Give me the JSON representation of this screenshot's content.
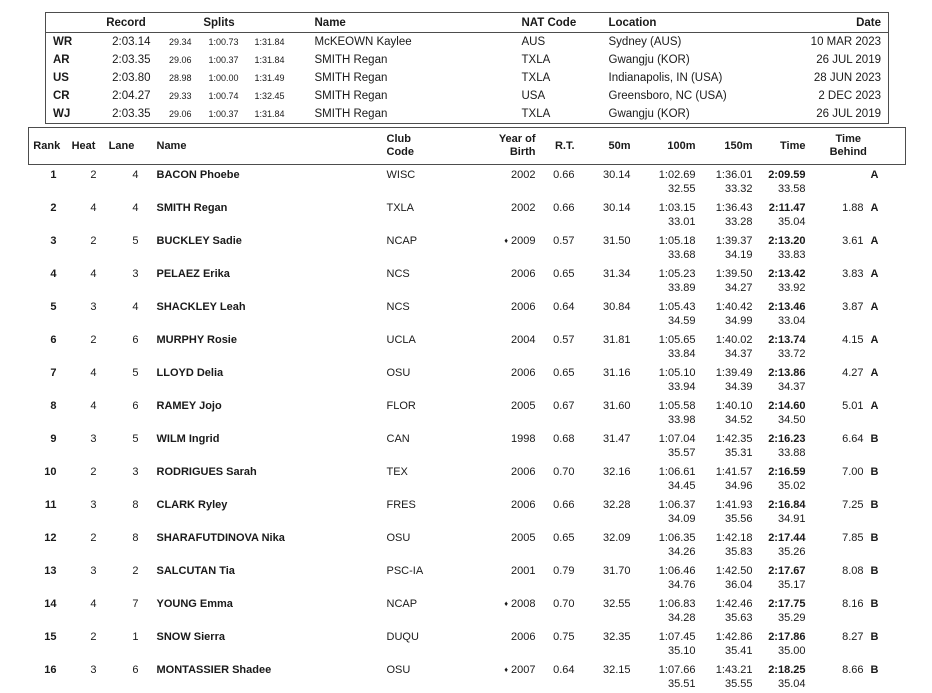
{
  "accent_colors": {
    "text": "#1a1a1a",
    "border": "#4d4d4d",
    "background": "#ffffff"
  },
  "records": {
    "headers": {
      "record": "Record",
      "splits": "Splits",
      "name": "Name",
      "nat": "NAT Code",
      "location": "Location",
      "date": "Date"
    },
    "rows": [
      {
        "tag": "WR",
        "time": "2:03.14",
        "s1": "29.34",
        "s2": "1:00.73",
        "s3": "1:31.84",
        "name": "McKEOWN Kaylee",
        "nat": "AUS",
        "location": "Sydney (AUS)",
        "date": "10 MAR 2023"
      },
      {
        "tag": "AR",
        "time": "2:03.35",
        "s1": "29.06",
        "s2": "1:00.37",
        "s3": "1:31.84",
        "name": "SMITH Regan",
        "nat": "TXLA",
        "location": "Gwangju (KOR)",
        "date": "26 JUL 2019"
      },
      {
        "tag": "US",
        "time": "2:03.80",
        "s1": "28.98",
        "s2": "1:00.00",
        "s3": "1:31.49",
        "name": "SMITH Regan",
        "nat": "TXLA",
        "location": "Indianapolis, IN (USA)",
        "date": "28 JUN 2023"
      },
      {
        "tag": "CR",
        "time": "2:04.27",
        "s1": "29.33",
        "s2": "1:00.74",
        "s3": "1:32.45",
        "name": "SMITH Regan",
        "nat": "USA",
        "location": "Greensboro, NC (USA)",
        "date": "2 DEC 2023"
      },
      {
        "tag": "WJ",
        "time": "2:03.35",
        "s1": "29.06",
        "s2": "1:00.37",
        "s3": "1:31.84",
        "name": "SMITH Regan",
        "nat": "TXLA",
        "location": "Gwangju (KOR)",
        "date": "26 JUL 2019"
      }
    ]
  },
  "results": {
    "headers": {
      "rank": "Rank",
      "heat": "Heat",
      "lane": "Lane",
      "name": "Name",
      "club": "Club\nCode",
      "yob": "Year of\nBirth",
      "rt": "R.T.",
      "m50": "50m",
      "m100": "100m",
      "m150": "150m",
      "time": "Time",
      "behind": "Time\nBehind"
    },
    "junior_marker": "♦",
    "rows": [
      {
        "rank": "1",
        "heat": "2",
        "lane": "4",
        "name": "BACON Phoebe",
        "club": "WISC",
        "diamond": false,
        "yob": "2002",
        "rt": "0.66",
        "m50": "30.14",
        "m100": "1:02.69",
        "m100s": "32.55",
        "m150": "1:36.01",
        "m150s": "33.32",
        "time": "2:09.59",
        "times": "33.58",
        "behind": "",
        "grade": "A"
      },
      {
        "rank": "2",
        "heat": "4",
        "lane": "4",
        "name": "SMITH Regan",
        "club": "TXLA",
        "diamond": false,
        "yob": "2002",
        "rt": "0.66",
        "m50": "30.14",
        "m100": "1:03.15",
        "m100s": "33.01",
        "m150": "1:36.43",
        "m150s": "33.28",
        "time": "2:11.47",
        "times": "35.04",
        "behind": "1.88",
        "grade": "A"
      },
      {
        "rank": "3",
        "heat": "2",
        "lane": "5",
        "name": "BUCKLEY Sadie",
        "club": "NCAP",
        "diamond": true,
        "yob": "2009",
        "rt": "0.57",
        "m50": "31.50",
        "m100": "1:05.18",
        "m100s": "33.68",
        "m150": "1:39.37",
        "m150s": "34.19",
        "time": "2:13.20",
        "times": "33.83",
        "behind": "3.61",
        "grade": "A"
      },
      {
        "rank": "4",
        "heat": "4",
        "lane": "3",
        "name": "PELAEZ Erika",
        "club": "NCS",
        "diamond": false,
        "yob": "2006",
        "rt": "0.65",
        "m50": "31.34",
        "m100": "1:05.23",
        "m100s": "33.89",
        "m150": "1:39.50",
        "m150s": "34.27",
        "time": "2:13.42",
        "times": "33.92",
        "behind": "3.83",
        "grade": "A"
      },
      {
        "rank": "5",
        "heat": "3",
        "lane": "4",
        "name": "SHACKLEY Leah",
        "club": "NCS",
        "diamond": false,
        "yob": "2006",
        "rt": "0.64",
        "m50": "30.84",
        "m100": "1:05.43",
        "m100s": "34.59",
        "m150": "1:40.42",
        "m150s": "34.99",
        "time": "2:13.46",
        "times": "33.04",
        "behind": "3.87",
        "grade": "A"
      },
      {
        "rank": "6",
        "heat": "2",
        "lane": "6",
        "name": "MURPHY Rosie",
        "club": "UCLA",
        "diamond": false,
        "yob": "2004",
        "rt": "0.57",
        "m50": "31.81",
        "m100": "1:05.65",
        "m100s": "33.84",
        "m150": "1:40.02",
        "m150s": "34.37",
        "time": "2:13.74",
        "times": "33.72",
        "behind": "4.15",
        "grade": "A"
      },
      {
        "rank": "7",
        "heat": "4",
        "lane": "5",
        "name": "LLOYD Delia",
        "club": "OSU",
        "diamond": false,
        "yob": "2006",
        "rt": "0.65",
        "m50": "31.16",
        "m100": "1:05.10",
        "m100s": "33.94",
        "m150": "1:39.49",
        "m150s": "34.39",
        "time": "2:13.86",
        "times": "34.37",
        "behind": "4.27",
        "grade": "A"
      },
      {
        "rank": "8",
        "heat": "4",
        "lane": "6",
        "name": "RAMEY Jojo",
        "club": "FLOR",
        "diamond": false,
        "yob": "2005",
        "rt": "0.67",
        "m50": "31.60",
        "m100": "1:05.58",
        "m100s": "33.98",
        "m150": "1:40.10",
        "m150s": "34.52",
        "time": "2:14.60",
        "times": "34.50",
        "behind": "5.01",
        "grade": "A"
      },
      {
        "rank": "9",
        "heat": "3",
        "lane": "5",
        "name": "WILM Ingrid",
        "club": "CAN",
        "diamond": false,
        "yob": "1998",
        "rt": "0.68",
        "m50": "31.47",
        "m100": "1:07.04",
        "m100s": "35.57",
        "m150": "1:42.35",
        "m150s": "35.31",
        "time": "2:16.23",
        "times": "33.88",
        "behind": "6.64",
        "grade": "B"
      },
      {
        "rank": "10",
        "heat": "2",
        "lane": "3",
        "name": "RODRIGUES Sarah",
        "club": "TEX",
        "diamond": false,
        "yob": "2006",
        "rt": "0.70",
        "m50": "32.16",
        "m100": "1:06.61",
        "m100s": "34.45",
        "m150": "1:41.57",
        "m150s": "34.96",
        "time": "2:16.59",
        "times": "35.02",
        "behind": "7.00",
        "grade": "B"
      },
      {
        "rank": "11",
        "heat": "3",
        "lane": "8",
        "name": "CLARK Ryley",
        "club": "FRES",
        "diamond": false,
        "yob": "2006",
        "rt": "0.66",
        "m50": "32.28",
        "m100": "1:06.37",
        "m100s": "34.09",
        "m150": "1:41.93",
        "m150s": "35.56",
        "time": "2:16.84",
        "times": "34.91",
        "behind": "7.25",
        "grade": "B"
      },
      {
        "rank": "12",
        "heat": "2",
        "lane": "8",
        "name": "SHARAFUTDINOVA Nika",
        "club": "OSU",
        "diamond": false,
        "yob": "2005",
        "rt": "0.65",
        "m50": "32.09",
        "m100": "1:06.35",
        "m100s": "34.26",
        "m150": "1:42.18",
        "m150s": "35.83",
        "time": "2:17.44",
        "times": "35.26",
        "behind": "7.85",
        "grade": "B"
      },
      {
        "rank": "13",
        "heat": "3",
        "lane": "2",
        "name": "SALCUTAN Tia",
        "club": "PSC-IA",
        "diamond": false,
        "yob": "2001",
        "rt": "0.79",
        "m50": "31.70",
        "m100": "1:06.46",
        "m100s": "34.76",
        "m150": "1:42.50",
        "m150s": "36.04",
        "time": "2:17.67",
        "times": "35.17",
        "behind": "8.08",
        "grade": "B"
      },
      {
        "rank": "14",
        "heat": "4",
        "lane": "7",
        "name": "YOUNG Emma",
        "club": "NCAP",
        "diamond": true,
        "yob": "2008",
        "rt": "0.70",
        "m50": "32.55",
        "m100": "1:06.83",
        "m100s": "34.28",
        "m150": "1:42.46",
        "m150s": "35.63",
        "time": "2:17.75",
        "times": "35.29",
        "behind": "8.16",
        "grade": "B"
      },
      {
        "rank": "15",
        "heat": "2",
        "lane": "1",
        "name": "SNOW Sierra",
        "club": "DUQU",
        "diamond": false,
        "yob": "2006",
        "rt": "0.75",
        "m50": "32.35",
        "m100": "1:07.45",
        "m100s": "35.10",
        "m150": "1:42.86",
        "m150s": "35.41",
        "time": "2:17.86",
        "times": "35.00",
        "behind": "8.27",
        "grade": "B"
      },
      {
        "rank": "16",
        "heat": "3",
        "lane": "6",
        "name": "MONTASSIER Shadee",
        "club": "OSU",
        "diamond": true,
        "yob": "2007",
        "rt": "0.64",
        "m50": "32.15",
        "m100": "1:07.66",
        "m100s": "35.51",
        "m150": "1:43.21",
        "m150s": "35.55",
        "time": "2:18.25",
        "times": "35.04",
        "behind": "8.66",
        "grade": "B"
      }
    ]
  }
}
